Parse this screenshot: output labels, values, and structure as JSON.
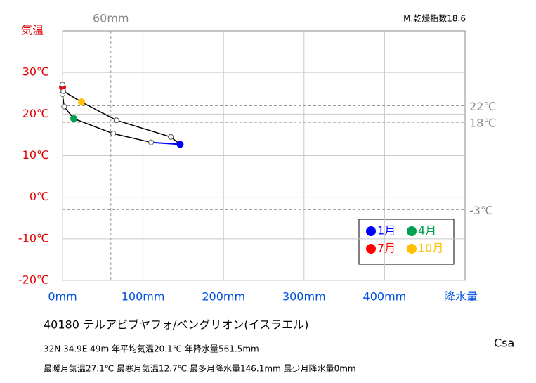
{
  "chart_data": {
    "type": "climograph",
    "y_title": "気温",
    "x_title": "降水量",
    "dryness_index": "M.乾燥指数18.6",
    "station": "40180  テルアビブヤフォ/ベングリオン(イスラエル)",
    "info_line1": "32N  34.9E 49m  年平均気温20.1℃ 年降水量561.5mm",
    "info_line2": "最暖月気温27.1℃ 最寒月気温12.7℃ 最多月降水量146.1mm 最少月降水量0mm",
    "climate_class": "Csa",
    "x": [
      146.1,
      110,
      63,
      14,
      2,
      0,
      0,
      0,
      1,
      23.6,
      67,
      134.5
    ],
    "y": [
      12.7,
      13.2,
      15.3,
      18.9,
      21.8,
      24.8,
      26.5,
      27.1,
      25.5,
      22.9,
      18.5,
      14.5
    ],
    "point_colors": [
      "#0000ff",
      null,
      null,
      "#00a050",
      null,
      null,
      "#ff0000",
      null,
      null,
      "#ffc000",
      null,
      null
    ],
    "line_color": "#000000",
    "first_segment_color": "#0000ff",
    "legend": [
      {
        "name": "1月",
        "color": "#0000ff"
      },
      {
        "name": "4月",
        "color": "#00a050"
      },
      {
        "name": "7月",
        "color": "#ff0000"
      },
      {
        "name": "10月",
        "color": "#ffc000"
      }
    ],
    "xlim": [
      0,
      500
    ],
    "ylim": [
      -20,
      40
    ],
    "xticks": [
      {
        "value": 0,
        "label": "0mm"
      },
      {
        "value": 100,
        "label": "100mm"
      },
      {
        "value": 200,
        "label": "200mm"
      },
      {
        "value": 300,
        "label": "300mm"
      },
      {
        "value": 400,
        "label": "400mm"
      }
    ],
    "yticks": [
      {
        "value": -20,
        "label": "-20℃"
      },
      {
        "value": -10,
        "label": "-10℃"
      },
      {
        "value": 0,
        "label": "0℃"
      },
      {
        "value": 10,
        "label": "10℃"
      },
      {
        "value": 20,
        "label": "20℃"
      },
      {
        "value": 30,
        "label": "30℃"
      }
    ],
    "ref_x": [
      {
        "value": 60,
        "label": "60mm"
      }
    ],
    "ref_y": [
      {
        "value": 22,
        "label": "22℃"
      },
      {
        "value": 18,
        "label": "18℃"
      },
      {
        "value": -3,
        "label": "-3℃"
      }
    ],
    "grid": true
  }
}
